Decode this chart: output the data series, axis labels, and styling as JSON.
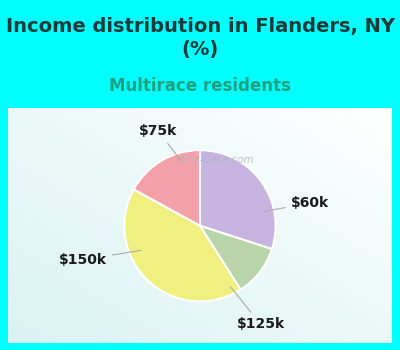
{
  "title": "Income distribution in Flanders, NY\n(%)",
  "subtitle": "Multirace residents",
  "labels": [
    "$60k",
    "$125k",
    "$150k",
    "$75k"
  ],
  "sizes": [
    30,
    11,
    42,
    17
  ],
  "colors": [
    "#c8b4e0",
    "#b8d4a8",
    "#f0f080",
    "#f4a0a8"
  ],
  "title_fontsize": 14,
  "subtitle_fontsize": 12,
  "title_color": "#1a3a3a",
  "subtitle_color": "#20a080",
  "background_color": "#00ffff",
  "chart_bg_color": "#ffffff",
  "label_fontsize": 10,
  "start_angle": 90,
  "watermark": "  City-Data.com",
  "label_color": "#1a1a1a"
}
